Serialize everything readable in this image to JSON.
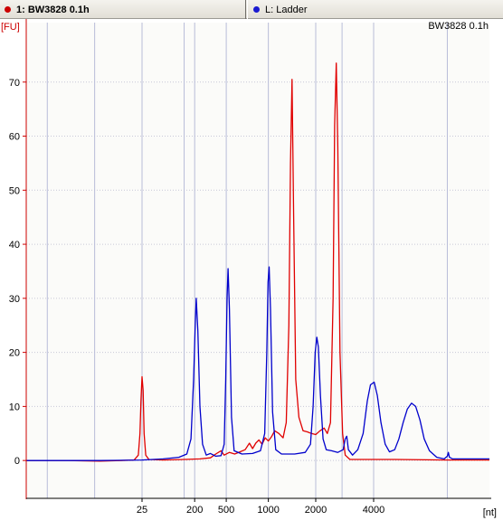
{
  "tabs": [
    {
      "label": "1: BW3828 0.1h",
      "color": "#cc0000"
    },
    {
      "label": "L: Ladder",
      "color": "#1a1ad0"
    }
  ],
  "chart_data": {
    "type": "line",
    "title": "BW3828 0.1h",
    "ylabel": "[FU]",
    "xlabel": "[nt]",
    "ylim": [
      -7,
      81
    ],
    "y_ticks": [
      0,
      10,
      20,
      30,
      40,
      50,
      60,
      70
    ],
    "x_ticks": [
      {
        "label": "25",
        "x": 22
      },
      {
        "label": "200",
        "x": 32
      },
      {
        "label": "500",
        "x": 38
      },
      {
        "label": "1000",
        "x": 46
      },
      {
        "label": "2000",
        "x": 55
      },
      {
        "label": "4000",
        "x": 66
      }
    ],
    "xlim": [
      0,
      88
    ],
    "x_gridlines": [
      4,
      13,
      22,
      30,
      32,
      38,
      46,
      55,
      60,
      66,
      80
    ],
    "grid": true,
    "series": [
      {
        "name": "BW3828 0.1h",
        "color": "#e00000",
        "points": [
          [
            0,
            0
          ],
          [
            8,
            0
          ],
          [
            14,
            -0.1
          ],
          [
            18,
            0
          ],
          [
            20.5,
            0.1
          ],
          [
            21.3,
            1
          ],
          [
            21.6,
            5
          ],
          [
            21.8,
            11
          ],
          [
            22.0,
            15.5
          ],
          [
            22.2,
            13
          ],
          [
            22.4,
            5
          ],
          [
            22.7,
            1
          ],
          [
            23.3,
            0.2
          ],
          [
            26,
            0.1
          ],
          [
            30,
            0.2
          ],
          [
            33,
            0.3
          ],
          [
            35,
            0.5
          ],
          [
            36,
            1.2
          ],
          [
            37,
            1.8
          ],
          [
            37.6,
            1
          ],
          [
            38.6,
            1.5
          ],
          [
            39.6,
            1.2
          ],
          [
            40.6,
            1.6
          ],
          [
            41.6,
            2.0
          ],
          [
            42.4,
            3.2
          ],
          [
            43,
            2.2
          ],
          [
            43.6,
            3.2
          ],
          [
            44.2,
            3.8
          ],
          [
            44.8,
            3.0
          ],
          [
            45.4,
            4.2
          ],
          [
            46,
            3.6
          ],
          [
            46.6,
            4.4
          ],
          [
            47.2,
            5.5
          ],
          [
            48,
            5.0
          ],
          [
            48.8,
            4.2
          ],
          [
            49.4,
            7
          ],
          [
            49.9,
            25
          ],
          [
            50.2,
            55
          ],
          [
            50.5,
            70.5
          ],
          [
            50.8,
            45
          ],
          [
            51.2,
            15
          ],
          [
            51.8,
            8
          ],
          [
            52.6,
            5.5
          ],
          [
            53.4,
            5.3
          ],
          [
            54.2,
            5.0
          ],
          [
            55,
            4.8
          ],
          [
            55.8,
            5.5
          ],
          [
            56.6,
            6.0
          ],
          [
            57.2,
            5.0
          ],
          [
            57.8,
            7
          ],
          [
            58.3,
            30
          ],
          [
            58.6,
            62
          ],
          [
            58.9,
            73.5
          ],
          [
            59.2,
            58
          ],
          [
            59.6,
            20
          ],
          [
            60.1,
            5
          ],
          [
            60.6,
            1
          ],
          [
            61.5,
            0.2
          ],
          [
            70,
            0.2
          ],
          [
            80,
            0.1
          ],
          [
            88,
            0.1
          ]
        ]
      },
      {
        "name": "L: Ladder",
        "color": "#0000cc",
        "points": [
          [
            0,
            0
          ],
          [
            14,
            0
          ],
          [
            22,
            0.1
          ],
          [
            26,
            0.3
          ],
          [
            29,
            0.6
          ],
          [
            30.5,
            1.2
          ],
          [
            31.3,
            4
          ],
          [
            31.8,
            15
          ],
          [
            32.1,
            25
          ],
          [
            32.3,
            30
          ],
          [
            32.6,
            24
          ],
          [
            33.0,
            10
          ],
          [
            33.5,
            3
          ],
          [
            34.2,
            1.0
          ],
          [
            35.0,
            1.3
          ],
          [
            36,
            0.8
          ],
          [
            37,
            0.9
          ],
          [
            37.6,
            3
          ],
          [
            37.9,
            15
          ],
          [
            38.15,
            30
          ],
          [
            38.35,
            35.5
          ],
          [
            38.6,
            28
          ],
          [
            39.0,
            8
          ],
          [
            39.5,
            1.8
          ],
          [
            41,
            1.2
          ],
          [
            43,
            1.3
          ],
          [
            44.5,
            1.8
          ],
          [
            45.3,
            5
          ],
          [
            45.7,
            20
          ],
          [
            45.95,
            33
          ],
          [
            46.15,
            35.8
          ],
          [
            46.4,
            28
          ],
          [
            46.8,
            9
          ],
          [
            47.4,
            2
          ],
          [
            48.5,
            1.2
          ],
          [
            51,
            1.2
          ],
          [
            53,
            1.5
          ],
          [
            54,
            3
          ],
          [
            54.5,
            10
          ],
          [
            54.9,
            20
          ],
          [
            55.2,
            22.8
          ],
          [
            55.5,
            21
          ],
          [
            55.9,
            12
          ],
          [
            56.4,
            4
          ],
          [
            57,
            2
          ],
          [
            58,
            1.8
          ],
          [
            59.2,
            1.5
          ],
          [
            60.2,
            2
          ],
          [
            60.6,
            4
          ],
          [
            60.9,
            4.5
          ],
          [
            61.2,
            2
          ],
          [
            62,
            1
          ],
          [
            63,
            2
          ],
          [
            64,
            5
          ],
          [
            64.8,
            11
          ],
          [
            65.4,
            14
          ],
          [
            66.1,
            14.5
          ],
          [
            66.7,
            12
          ],
          [
            67.4,
            7
          ],
          [
            68.2,
            3
          ],
          [
            69,
            1.6
          ],
          [
            70,
            2
          ],
          [
            70.8,
            4
          ],
          [
            71.6,
            7
          ],
          [
            72.4,
            9.5
          ],
          [
            73.2,
            10.6
          ],
          [
            74,
            10
          ],
          [
            74.8,
            7.5
          ],
          [
            75.6,
            4
          ],
          [
            76.6,
            1.8
          ],
          [
            78,
            0.6
          ],
          [
            79.4,
            0.3
          ],
          [
            80,
            0.8
          ],
          [
            80.2,
            1.5
          ],
          [
            80.4,
            0.6
          ],
          [
            81,
            0.3
          ],
          [
            84,
            0.3
          ],
          [
            88,
            0.3
          ]
        ]
      }
    ]
  }
}
